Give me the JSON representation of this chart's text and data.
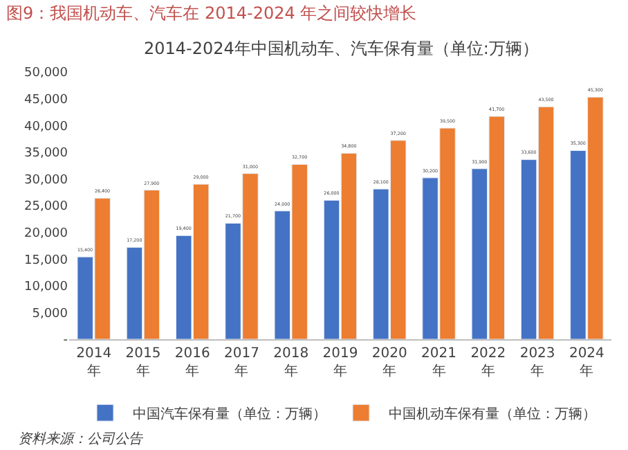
{
  "chart_data": {
    "type": "bar",
    "title": "图9：我国机动车、汽车在 2014-2024 年之间较快增长",
    "subtitle": "2014-2024年中国机动车、汽车保有量（单位:万辆）",
    "categories": [
      "2014\n年",
      "2015\n年",
      "2016\n年",
      "2017\n年",
      "2018\n年",
      "2019\n年",
      "2020\n年",
      "2021\n年",
      "2022\n年",
      "2023\n年",
      "2024\n年"
    ],
    "series": [
      {
        "name": "中国汽车保有量（单位：万辆）",
        "color": "#4472c4",
        "values": [
          15400,
          17200,
          19400,
          21700,
          24000,
          26000,
          28100,
          30200,
          31900,
          33600,
          35300
        ],
        "value_labels": [
          "15,400",
          "17,200",
          "19,400",
          "21,700",
          "24,000",
          "26,000",
          "28,100",
          "30,200",
          "31,900",
          "33,600",
          "35,300"
        ]
      },
      {
        "name": "中国机动车保有量（单位：万辆）",
        "color": "#ed7d31",
        "values": [
          26400,
          27900,
          29000,
          31000,
          32700,
          34800,
          37200,
          39500,
          41700,
          43500,
          45300
        ],
        "value_labels": [
          "26,400",
          "27,900",
          "29,000",
          "31,000",
          "32,700",
          "34,800",
          "37,200",
          "39,500",
          "41,700",
          "43,500",
          "45,300"
        ]
      }
    ],
    "ylim": [
      0,
      50000
    ],
    "yticks": [
      {
        "value": 0,
        "label": "-"
      },
      {
        "value": 5000,
        "label": "5,000"
      },
      {
        "value": 10000,
        "label": "10,000"
      },
      {
        "value": 15000,
        "label": "15,000"
      },
      {
        "value": 20000,
        "label": "20,000"
      },
      {
        "value": 25000,
        "label": "25,000"
      },
      {
        "value": 30000,
        "label": "30,000"
      },
      {
        "value": 35000,
        "label": "35,000"
      },
      {
        "value": 40000,
        "label": "40,000"
      },
      {
        "value": 45000,
        "label": "45,000"
      },
      {
        "value": 50000,
        "label": "50,000"
      }
    ],
    "grid": false,
    "legend": "bottom",
    "annotations": [
      "资料来源：公司公告"
    ]
  }
}
